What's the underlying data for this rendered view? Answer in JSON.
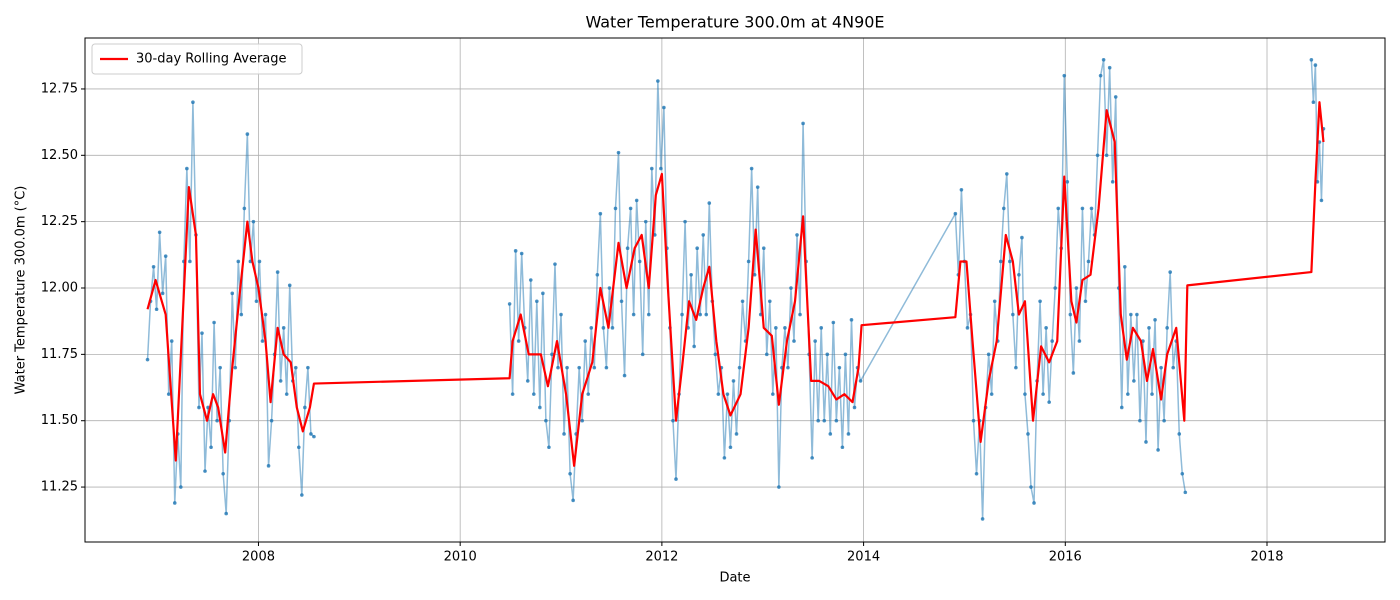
{
  "chart_data": {
    "type": "line",
    "title": "Water Temperature 300.0m at 4N90E",
    "xlabel": "Date",
    "ylabel": "Water Temperature 300.0m (°C)",
    "xlim": [
      2006.28,
      2019.17
    ],
    "ylim": [
      11.043,
      12.942
    ],
    "xticks": [
      2008,
      2010,
      2012,
      2014,
      2016,
      2018
    ],
    "yticks": [
      11.25,
      {
        "value": 11.5,
        "label": "11.50"
      },
      11.75,
      {
        "value": 12,
        "label": "12.00"
      },
      12.25,
      {
        "value": 12.5,
        "label": "12.50"
      },
      12.75
    ],
    "grid": true,
    "legend": "upper left",
    "series": [
      {
        "color": "#1f77b4",
        "markers": true,
        "x": [
          2006.9,
          2006.93,
          2006.96,
          2006.99,
          2007.02,
          2007.05,
          2007.08,
          2007.11,
          2007.14,
          2007.17,
          2007.2,
          2007.23,
          2007.26,
          2007.29,
          2007.32,
          2007.35,
          2007.38,
          2007.41,
          2007.44,
          2007.47,
          2007.5,
          2007.53,
          2007.56,
          2007.59,
          2007.62,
          2007.65,
          2007.68,
          2007.71,
          2007.74,
          2007.77,
          2007.8,
          2007.83,
          2007.86,
          2007.89,
          2007.92,
          2007.95,
          2007.98,
          2008.01,
          2008.04,
          2008.07,
          2008.1,
          2008.13,
          2008.16,
          2008.19,
          2008.22,
          2008.25,
          2008.28,
          2008.31,
          2008.34,
          2008.37,
          2008.4,
          2008.43,
          2008.46,
          2008.49,
          2008.52,
          2008.55,
          2009.5,
          2010.49,
          2010.52,
          2010.55,
          2010.58,
          2010.61,
          2010.64,
          2010.67,
          2010.7,
          2010.73,
          2010.76,
          2010.79,
          2010.82,
          2010.85,
          2010.88,
          2010.91,
          2010.94,
          2010.97,
          2011,
          2011.03,
          2011.06,
          2011.09,
          2011.12,
          2011.15,
          2011.18,
          2011.21,
          2011.24,
          2011.27,
          2011.3,
          2011.33,
          2011.36,
          2011.39,
          2011.42,
          2011.45,
          2011.48,
          2011.51,
          2011.54,
          2011.57,
          2011.6,
          2011.63,
          2011.66,
          2011.69,
          2011.72,
          2011.75,
          2011.78,
          2011.81,
          2011.84,
          2011.87,
          2011.9,
          2011.93,
          2011.96,
          2011.99,
          2012.02,
          2012.05,
          2012.08,
          2012.11,
          2012.14,
          2012.17,
          2012.2,
          2012.23,
          2012.26,
          2012.29,
          2012.32,
          2012.35,
          2012.38,
          2012.41,
          2012.44,
          2012.47,
          2012.5,
          2012.53,
          2012.56,
          2012.59,
          2012.62,
          2012.65,
          2012.68,
          2012.71,
          2012.74,
          2012.77,
          2012.8,
          2012.83,
          2012.86,
          2012.89,
          2012.92,
          2012.95,
          2012.98,
          2013.01,
          2013.04,
          2013.07,
          2013.1,
          2013.13,
          2013.16,
          2013.19,
          2013.22,
          2013.25,
          2013.28,
          2013.31,
          2013.34,
          2013.37,
          2013.4,
          2013.43,
          2013.46,
          2013.49,
          2013.52,
          2013.55,
          2013.58,
          2013.61,
          2013.64,
          2013.67,
          2013.7,
          2013.73,
          2013.76,
          2013.79,
          2013.82,
          2013.85,
          2013.88,
          2013.91,
          2013.94,
          2013.97,
          2014.91,
          2014.94,
          2014.97,
          2015,
          2015.03,
          2015.06,
          2015.09,
          2015.12,
          2015.15,
          2015.18,
          2015.21,
          2015.24,
          2015.27,
          2015.3,
          2015.33,
          2015.36,
          2015.39,
          2015.42,
          2015.45,
          2015.48,
          2015.51,
          2015.54,
          2015.57,
          2015.6,
          2015.63,
          2015.66,
          2015.69,
          2015.72,
          2015.75,
          2015.78,
          2015.81,
          2015.84,
          2015.87,
          2015.9,
          2015.93,
          2015.96,
          2015.99,
          2016.02,
          2016.05,
          2016.08,
          2016.11,
          2016.14,
          2016.17,
          2016.2,
          2016.23,
          2016.26,
          2016.29,
          2016.32,
          2016.35,
          2016.38,
          2016.41,
          2016.44,
          2016.47,
          2016.5,
          2016.53,
          2016.56,
          2016.59,
          2016.62,
          2016.65,
          2016.68,
          2016.71,
          2016.74,
          2016.77,
          2016.8,
          2016.83,
          2016.86,
          2016.89,
          2016.92,
          2016.95,
          2016.98,
          2017.01,
          2017.04,
          2017.07,
          2017.1,
          2017.13,
          2017.16,
          2017.19,
          2017.8,
          2018.44,
          2018.46,
          2018.48,
          2018.5,
          2018.52,
          2018.54,
          2018.56
        ],
        "values": [
          11.73,
          11.95,
          12.08,
          11.92,
          12.21,
          11.98,
          12.12,
          11.6,
          11.8,
          11.19,
          11.45,
          11.25,
          12.1,
          12.45,
          12.1,
          12.7,
          12.2,
          11.55,
          11.83,
          11.31,
          11.55,
          11.4,
          11.87,
          11.5,
          11.7,
          11.3,
          11.15,
          11.5,
          11.98,
          11.7,
          12.1,
          11.9,
          12.3,
          12.58,
          12.1,
          12.25,
          11.95,
          12.1,
          11.8,
          11.9,
          11.33,
          11.5,
          11.75,
          12.06,
          11.65,
          11.85,
          11.6,
          12.01,
          11.65,
          11.7,
          11.4,
          11.22,
          11.55,
          11.7,
          11.45,
          11.44,
          null,
          11.94,
          11.6,
          12.14,
          11.8,
          12.13,
          11.85,
          11.65,
          12.03,
          11.6,
          11.95,
          11.55,
          11.98,
          11.5,
          11.4,
          11.75,
          12.09,
          11.7,
          11.9,
          11.45,
          11.7,
          11.3,
          11.2,
          11.45,
          11.7,
          11.5,
          11.8,
          11.6,
          11.85,
          11.7,
          12.05,
          12.28,
          11.85,
          11.7,
          12.0,
          11.85,
          12.3,
          12.51,
          11.95,
          11.67,
          12.15,
          12.3,
          11.9,
          12.33,
          12.1,
          11.75,
          12.25,
          11.9,
          12.45,
          12.2,
          12.78,
          12.45,
          12.68,
          12.15,
          11.85,
          11.5,
          11.28,
          11.6,
          11.9,
          12.25,
          11.85,
          12.05,
          11.78,
          12.15,
          11.9,
          12.2,
          11.9,
          12.32,
          11.95,
          11.75,
          11.6,
          11.7,
          11.36,
          11.6,
          11.4,
          11.65,
          11.45,
          11.7,
          11.95,
          11.8,
          12.1,
          12.45,
          12.05,
          12.38,
          11.9,
          12.15,
          11.75,
          11.95,
          11.6,
          11.85,
          11.25,
          11.7,
          11.85,
          11.7,
          12.0,
          11.8,
          12.2,
          11.9,
          12.62,
          12.1,
          11.75,
          11.36,
          11.8,
          11.5,
          11.85,
          11.5,
          11.75,
          11.45,
          11.87,
          11.5,
          11.7,
          11.4,
          11.75,
          11.45,
          11.88,
          11.55,
          11.7,
          11.65,
          12.28,
          12.05,
          12.37,
          12.1,
          11.85,
          11.9,
          11.5,
          11.3,
          11.5,
          11.13,
          11.55,
          11.75,
          11.6,
          11.95,
          11.8,
          12.1,
          12.3,
          12.43,
          12.1,
          11.9,
          11.7,
          12.05,
          12.19,
          11.6,
          11.45,
          11.25,
          11.19,
          11.65,
          11.95,
          11.6,
          11.85,
          11.57,
          11.8,
          12.0,
          12.3,
          12.15,
          12.8,
          12.4,
          11.9,
          11.68,
          12.0,
          11.8,
          12.3,
          11.95,
          12.1,
          12.3,
          12.2,
          12.5,
          12.8,
          12.86,
          12.5,
          12.83,
          12.4,
          12.72,
          12.0,
          11.55,
          12.08,
          11.6,
          11.9,
          11.65,
          11.9,
          11.5,
          11.8,
          11.42,
          11.85,
          11.6,
          11.88,
          11.39,
          11.7,
          11.5,
          11.85,
          12.06,
          11.7,
          11.8,
          11.45,
          11.3,
          11.23,
          null,
          12.86,
          12.7,
          12.84,
          12.4,
          12.55,
          12.33,
          12.6
        ]
      },
      {
        "name": "30-day Rolling Average",
        "color": "#ff0000",
        "x": [
          2006.9,
          2006.98,
          2007.08,
          2007.18,
          2007.25,
          2007.31,
          2007.38,
          2007.42,
          2007.49,
          2007.55,
          2007.6,
          2007.67,
          2007.74,
          2007.82,
          2007.89,
          2007.94,
          2008,
          2008.07,
          2008.12,
          2008.19,
          2008.25,
          2008.32,
          2008.38,
          2008.44,
          2008.51,
          2008.55,
          2010.49,
          2010.52,
          2010.6,
          2010.68,
          2010.8,
          2010.87,
          2010.96,
          2011.05,
          2011.13,
          2011.21,
          2011.31,
          2011.39,
          2011.47,
          2011.57,
          2011.65,
          2011.73,
          2011.8,
          2011.87,
          2011.94,
          2012,
          2012.06,
          2012.14,
          2012.2,
          2012.27,
          2012.34,
          2012.41,
          2012.47,
          2012.54,
          2012.61,
          2012.68,
          2012.78,
          2012.86,
          2012.93,
          2013.01,
          2013.09,
          2013.16,
          2013.24,
          2013.32,
          2013.4,
          2013.48,
          2013.56,
          2013.65,
          2013.73,
          2013.81,
          2013.89,
          2013.95,
          2013.98,
          2014.91,
          2014.96,
          2015.02,
          2015.08,
          2015.16,
          2015.24,
          2015.32,
          2015.41,
          2015.48,
          2015.54,
          2015.6,
          2015.68,
          2015.76,
          2015.84,
          2015.92,
          2015.99,
          2016.06,
          2016.11,
          2016.17,
          2016.25,
          2016.33,
          2016.41,
          2016.49,
          2016.55,
          2016.61,
          2016.67,
          2016.75,
          2016.81,
          2016.87,
          2016.95,
          2017.01,
          2017.1,
          2017.18,
          2017.21,
          2018.44,
          2018.48,
          2018.52,
          2018.56
        ],
        "values": [
          11.92,
          12.03,
          11.9,
          11.35,
          11.9,
          12.38,
          12.2,
          11.6,
          11.5,
          11.6,
          11.55,
          11.38,
          11.7,
          12.0,
          12.25,
          12.1,
          12.0,
          11.8,
          11.57,
          11.85,
          11.75,
          11.72,
          11.55,
          11.46,
          11.55,
          11.64,
          11.66,
          11.8,
          11.9,
          11.75,
          11.75,
          11.63,
          11.8,
          11.6,
          11.33,
          11.6,
          11.72,
          12.0,
          11.85,
          12.17,
          12.0,
          12.15,
          12.2,
          12.0,
          12.35,
          12.43,
          12.0,
          11.5,
          11.7,
          11.95,
          11.88,
          12.0,
          12.08,
          11.8,
          11.6,
          11.52,
          11.6,
          11.85,
          12.22,
          11.85,
          11.82,
          11.56,
          11.8,
          11.95,
          12.27,
          11.65,
          11.65,
          11.63,
          11.58,
          11.6,
          11.57,
          11.7,
          11.86,
          11.89,
          12.1,
          12.1,
          11.8,
          11.42,
          11.65,
          11.8,
          12.2,
          12.1,
          11.9,
          11.95,
          11.5,
          11.78,
          11.72,
          11.8,
          12.42,
          11.95,
          11.87,
          12.03,
          12.05,
          12.3,
          12.67,
          12.55,
          11.9,
          11.73,
          11.85,
          11.8,
          11.65,
          11.77,
          11.58,
          11.75,
          11.85,
          11.5,
          12.01,
          12.06,
          12.4,
          12.7,
          12.55
        ]
      }
    ]
  }
}
